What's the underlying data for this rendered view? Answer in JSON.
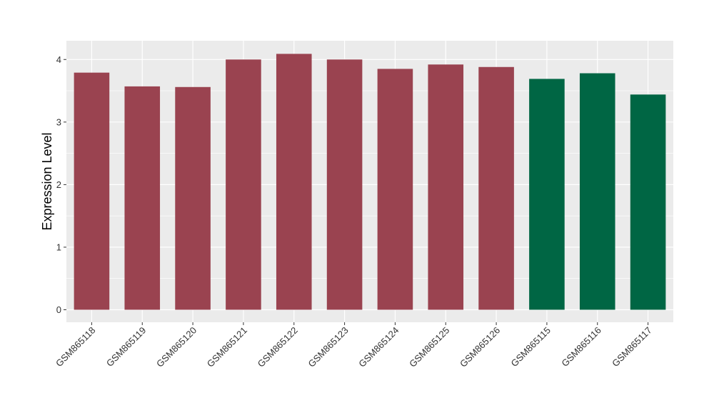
{
  "chart_data": {
    "type": "bar",
    "title": "",
    "xlabel": "",
    "ylabel": "Expression Level",
    "ylim": [
      -0.2,
      4.3
    ],
    "yticks": [
      0,
      1,
      2,
      3,
      4
    ],
    "grid": true,
    "legend": "none",
    "categories": [
      "GSM865118",
      "GSM865119",
      "GSM865120",
      "GSM865121",
      "GSM865122",
      "GSM865123",
      "GSM865124",
      "GSM865125",
      "GSM865126",
      "GSM865115",
      "GSM865116",
      "GSM865117"
    ],
    "values": [
      3.79,
      3.57,
      3.56,
      4.0,
      4.09,
      4.0,
      3.85,
      3.92,
      3.88,
      3.69,
      3.78,
      3.44
    ],
    "groups": [
      "a",
      "a",
      "a",
      "a",
      "a",
      "a",
      "a",
      "a",
      "a",
      "b",
      "b",
      "b"
    ],
    "colors": {
      "a": "#9A4350",
      "b": "#006644"
    },
    "panel_background": "#EBEBEB",
    "grid_color": "#FFFFFF"
  }
}
